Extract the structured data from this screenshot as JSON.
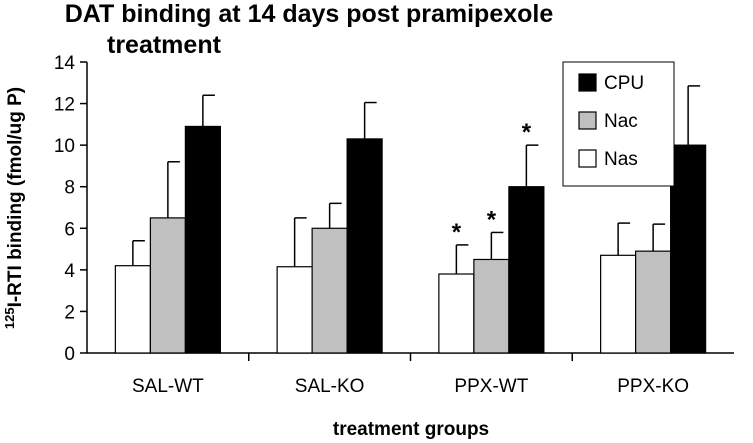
{
  "chart_data": {
    "type": "bar",
    "title_line1": "DAT binding at 14 days post pramipexole",
    "title_line2": "treatment",
    "xlabel": "treatment groups",
    "ylabel_sup": "125",
    "ylabel_rest": "I-RTI binding (fmol/ug P)",
    "categories": [
      "SAL-WT",
      "SAL-KO",
      "PPX-WT",
      "PPX-KO"
    ],
    "ylim": [
      0,
      14
    ],
    "yticks": [
      0,
      2,
      4,
      6,
      8,
      10,
      12,
      14
    ],
    "grid": false,
    "legend_position": "top-right",
    "series": [
      {
        "name": "Nas",
        "color": "#ffffff",
        "values": [
          4.2,
          4.15,
          3.8,
          4.7
        ],
        "errors": [
          1.2,
          2.35,
          1.4,
          1.55
        ],
        "significant": [
          false,
          false,
          true,
          false
        ]
      },
      {
        "name": "Nac",
        "color": "#c0c0c0",
        "values": [
          6.5,
          6.0,
          4.5,
          4.9
        ],
        "errors": [
          2.7,
          1.2,
          1.3,
          1.3
        ],
        "significant": [
          false,
          false,
          true,
          false
        ]
      },
      {
        "name": "CPU",
        "color": "#000000",
        "values": [
          10.9,
          10.3,
          8.0,
          10.0
        ],
        "errors": [
          1.5,
          1.75,
          2.0,
          2.85
        ],
        "significant": [
          false,
          false,
          true,
          false
        ]
      }
    ],
    "legend_order": [
      "CPU",
      "Nac",
      "Nas"
    ],
    "significance_marker": "*"
  }
}
